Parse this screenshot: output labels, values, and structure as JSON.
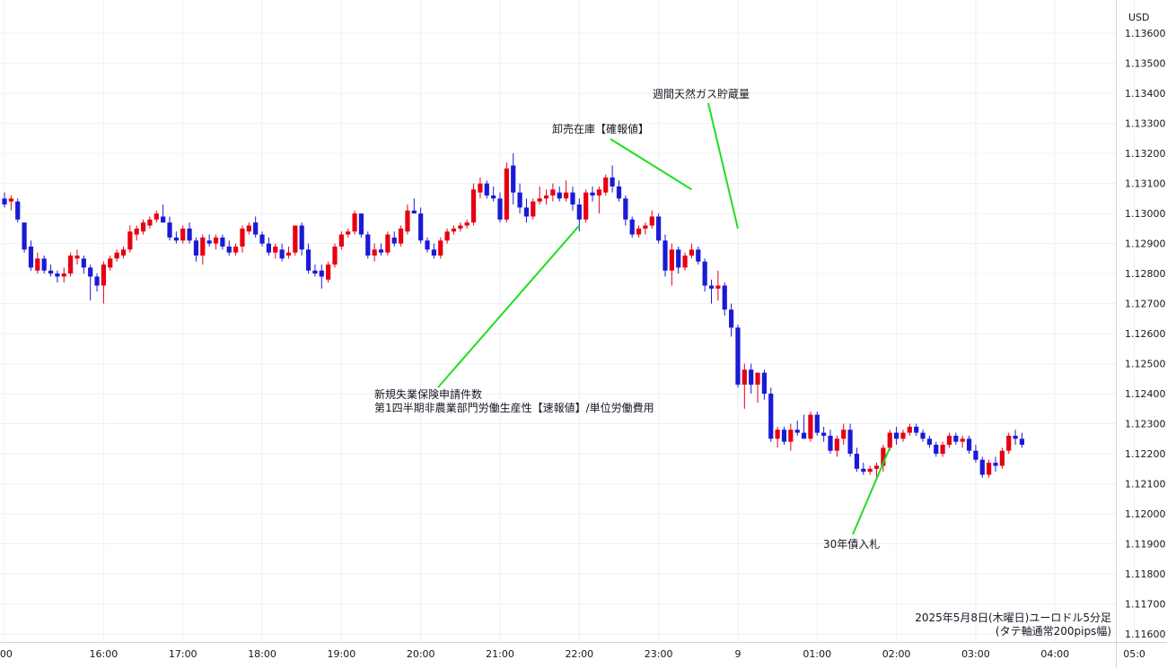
{
  "currency_label": "USD",
  "chart_title_line1": "2025年5月8日(木曜日)ユーロドル5分足",
  "chart_title_line2": "(タテ軸通常200pips幅)",
  "chart_data": {
    "type": "candlestick",
    "title": "2025年5月8日(木曜日)ユーロドル5分足",
    "subtitle": "(タテ軸通常200pips幅)",
    "y_axis_label": "USD",
    "ylim": [
      1.116,
      1.137
    ],
    "y_ticks": [
      "1.13600",
      "1.13500",
      "1.13400",
      "1.13300",
      "1.13200",
      "1.13100",
      "1.13000",
      "1.12900",
      "1.12800",
      "1.12700",
      "1.12600",
      "1.12500",
      "1.12400",
      "1.12300",
      "1.12200",
      "1.12100",
      "1.12000",
      "1.11900",
      "1.11800",
      "1.11700",
      "1.11600"
    ],
    "x_ticks": [
      ":00",
      "16:00",
      "17:00",
      "18:00",
      "19:00",
      "20:00",
      "21:00",
      "22:00",
      "23:00",
      "9",
      "01:00",
      "02:00",
      "03:00",
      "04:00",
      "05:0"
    ],
    "x_tick_index": [
      0,
      15,
      27,
      39,
      51,
      63,
      75,
      87,
      99,
      111,
      123,
      135,
      147,
      159,
      171
    ],
    "grid": true,
    "up_color": "#e60012",
    "down_color": "#1a1ad6",
    "candles": [
      {
        "o": 1.1305,
        "h": 1.1307,
        "l": 1.1302,
        "c": 1.1303
      },
      {
        "o": 1.1304,
        "h": 1.1306,
        "l": 1.1301,
        "c": 1.1305
      },
      {
        "o": 1.1304,
        "h": 1.1305,
        "l": 1.1297,
        "c": 1.1298
      },
      {
        "o": 1.1297,
        "h": 1.1297,
        "l": 1.1287,
        "c": 1.1288
      },
      {
        "o": 1.1289,
        "h": 1.1291,
        "l": 1.1281,
        "c": 1.1282
      },
      {
        "o": 1.1281,
        "h": 1.1287,
        "l": 1.128,
        "c": 1.1285
      },
      {
        "o": 1.1285,
        "h": 1.1286,
        "l": 1.128,
        "c": 1.1281
      },
      {
        "o": 1.1281,
        "h": 1.1283,
        "l": 1.1279,
        "c": 1.128
      },
      {
        "o": 1.128,
        "h": 1.1281,
        "l": 1.1277,
        "c": 1.1279
      },
      {
        "o": 1.1279,
        "h": 1.1282,
        "l": 1.1277,
        "c": 1.128
      },
      {
        "o": 1.128,
        "h": 1.1287,
        "l": 1.1279,
        "c": 1.1286
      },
      {
        "o": 1.1285,
        "h": 1.1288,
        "l": 1.1283,
        "c": 1.1286
      },
      {
        "o": 1.1285,
        "h": 1.1286,
        "l": 1.128,
        "c": 1.1282
      },
      {
        "o": 1.1282,
        "h": 1.1283,
        "l": 1.1271,
        "c": 1.1279
      },
      {
        "o": 1.1279,
        "h": 1.128,
        "l": 1.1274,
        "c": 1.1276
      },
      {
        "o": 1.1276,
        "h": 1.1284,
        "l": 1.127,
        "c": 1.1283
      },
      {
        "o": 1.1282,
        "h": 1.1286,
        "l": 1.1281,
        "c": 1.1285
      },
      {
        "o": 1.1285,
        "h": 1.1288,
        "l": 1.1284,
        "c": 1.1287
      },
      {
        "o": 1.1286,
        "h": 1.1289,
        "l": 1.1285,
        "c": 1.1288
      },
      {
        "o": 1.1288,
        "h": 1.1296,
        "l": 1.1287,
        "c": 1.1294
      },
      {
        "o": 1.1293,
        "h": 1.1296,
        "l": 1.1291,
        "c": 1.1295
      },
      {
        "o": 1.1294,
        "h": 1.1298,
        "l": 1.1293,
        "c": 1.1297
      },
      {
        "o": 1.1296,
        "h": 1.1299,
        "l": 1.1295,
        "c": 1.1298
      },
      {
        "o": 1.1298,
        "h": 1.1301,
        "l": 1.1297,
        "c": 1.13
      },
      {
        "o": 1.1299,
        "h": 1.1303,
        "l": 1.1297,
        "c": 1.1297
      },
      {
        "o": 1.1297,
        "h": 1.1299,
        "l": 1.1291,
        "c": 1.1292
      },
      {
        "o": 1.1292,
        "h": 1.1294,
        "l": 1.129,
        "c": 1.1291
      },
      {
        "o": 1.1291,
        "h": 1.1296,
        "l": 1.129,
        "c": 1.1295
      },
      {
        "o": 1.1295,
        "h": 1.1297,
        "l": 1.129,
        "c": 1.1291
      },
      {
        "o": 1.1291,
        "h": 1.1292,
        "l": 1.1284,
        "c": 1.1286
      },
      {
        "o": 1.1286,
        "h": 1.1293,
        "l": 1.1283,
        "c": 1.1292
      },
      {
        "o": 1.1291,
        "h": 1.1293,
        "l": 1.1289,
        "c": 1.129
      },
      {
        "o": 1.129,
        "h": 1.1293,
        "l": 1.1288,
        "c": 1.1292
      },
      {
        "o": 1.1292,
        "h": 1.1293,
        "l": 1.1288,
        "c": 1.1289
      },
      {
        "o": 1.1289,
        "h": 1.1291,
        "l": 1.1286,
        "c": 1.1287
      },
      {
        "o": 1.1287,
        "h": 1.129,
        "l": 1.1286,
        "c": 1.1289
      },
      {
        "o": 1.1289,
        "h": 1.1296,
        "l": 1.1287,
        "c": 1.1295
      },
      {
        "o": 1.1294,
        "h": 1.1297,
        "l": 1.1293,
        "c": 1.1296
      },
      {
        "o": 1.1297,
        "h": 1.1299,
        "l": 1.1292,
        "c": 1.1293
      },
      {
        "o": 1.1293,
        "h": 1.1294,
        "l": 1.1289,
        "c": 1.129
      },
      {
        "o": 1.129,
        "h": 1.1292,
        "l": 1.1286,
        "c": 1.1287
      },
      {
        "o": 1.1287,
        "h": 1.129,
        "l": 1.1285,
        "c": 1.1289
      },
      {
        "o": 1.1288,
        "h": 1.129,
        "l": 1.1284,
        "c": 1.1285
      },
      {
        "o": 1.1286,
        "h": 1.1289,
        "l": 1.1285,
        "c": 1.1287
      },
      {
        "o": 1.1287,
        "h": 1.1296,
        "l": 1.1286,
        "c": 1.1296
      },
      {
        "o": 1.1296,
        "h": 1.1297,
        "l": 1.1286,
        "c": 1.1288
      },
      {
        "o": 1.1288,
        "h": 1.129,
        "l": 1.128,
        "c": 1.1281
      },
      {
        "o": 1.1281,
        "h": 1.1283,
        "l": 1.1279,
        "c": 1.128
      },
      {
        "o": 1.1281,
        "h": 1.1283,
        "l": 1.1275,
        "c": 1.1279
      },
      {
        "o": 1.1278,
        "h": 1.1284,
        "l": 1.1277,
        "c": 1.1283
      },
      {
        "o": 1.1283,
        "h": 1.129,
        "l": 1.1282,
        "c": 1.1289
      },
      {
        "o": 1.1289,
        "h": 1.1294,
        "l": 1.1288,
        "c": 1.1293
      },
      {
        "o": 1.1293,
        "h": 1.1295,
        "l": 1.1292,
        "c": 1.1294
      },
      {
        "o": 1.1294,
        "h": 1.1301,
        "l": 1.1293,
        "c": 1.13
      },
      {
        "o": 1.13,
        "h": 1.13,
        "l": 1.1292,
        "c": 1.1293
      },
      {
        "o": 1.1293,
        "h": 1.1294,
        "l": 1.1285,
        "c": 1.1286
      },
      {
        "o": 1.1286,
        "h": 1.129,
        "l": 1.1284,
        "c": 1.1288
      },
      {
        "o": 1.1288,
        "h": 1.129,
        "l": 1.1286,
        "c": 1.1287
      },
      {
        "o": 1.1287,
        "h": 1.1294,
        "l": 1.1286,
        "c": 1.1293
      },
      {
        "o": 1.1292,
        "h": 1.1294,
        "l": 1.1289,
        "c": 1.129
      },
      {
        "o": 1.129,
        "h": 1.1296,
        "l": 1.1289,
        "c": 1.1295
      },
      {
        "o": 1.1294,
        "h": 1.1303,
        "l": 1.1293,
        "c": 1.1301
      },
      {
        "o": 1.1301,
        "h": 1.1305,
        "l": 1.13,
        "c": 1.13
      },
      {
        "o": 1.13,
        "h": 1.1302,
        "l": 1.129,
        "c": 1.1291
      },
      {
        "o": 1.1291,
        "h": 1.1292,
        "l": 1.1287,
        "c": 1.1288
      },
      {
        "o": 1.1288,
        "h": 1.129,
        "l": 1.1285,
        "c": 1.1286
      },
      {
        "o": 1.1286,
        "h": 1.1292,
        "l": 1.1285,
        "c": 1.1291
      },
      {
        "o": 1.1291,
        "h": 1.1295,
        "l": 1.129,
        "c": 1.1294
      },
      {
        "o": 1.1294,
        "h": 1.1296,
        "l": 1.1293,
        "c": 1.1295
      },
      {
        "o": 1.1295,
        "h": 1.1297,
        "l": 1.1294,
        "c": 1.1296
      },
      {
        "o": 1.1296,
        "h": 1.1298,
        "l": 1.1295,
        "c": 1.1297
      },
      {
        "o": 1.1297,
        "h": 1.131,
        "l": 1.1296,
        "c": 1.1308
      },
      {
        "o": 1.1307,
        "h": 1.1312,
        "l": 1.1305,
        "c": 1.131
      },
      {
        "o": 1.131,
        "h": 1.1311,
        "l": 1.1305,
        "c": 1.1306
      },
      {
        "o": 1.1306,
        "h": 1.1309,
        "l": 1.1304,
        "c": 1.1305
      },
      {
        "o": 1.1305,
        "h": 1.1307,
        "l": 1.1297,
        "c": 1.1298
      },
      {
        "o": 1.1298,
        "h": 1.1317,
        "l": 1.1297,
        "c": 1.1315
      },
      {
        "o": 1.1316,
        "h": 1.132,
        "l": 1.1303,
        "c": 1.1307
      },
      {
        "o": 1.1307,
        "h": 1.131,
        "l": 1.13,
        "c": 1.1302
      },
      {
        "o": 1.1302,
        "h": 1.1305,
        "l": 1.1297,
        "c": 1.1299
      },
      {
        "o": 1.1299,
        "h": 1.1305,
        "l": 1.1298,
        "c": 1.1304
      },
      {
        "o": 1.1304,
        "h": 1.1309,
        "l": 1.1303,
        "c": 1.1305
      },
      {
        "o": 1.1305,
        "h": 1.1308,
        "l": 1.1303,
        "c": 1.1306
      },
      {
        "o": 1.1306,
        "h": 1.131,
        "l": 1.1304,
        "c": 1.1308
      },
      {
        "o": 1.1307,
        "h": 1.1309,
        "l": 1.1304,
        "c": 1.1305
      },
      {
        "o": 1.1305,
        "h": 1.1311,
        "l": 1.1304,
        "c": 1.1307
      },
      {
        "o": 1.1307,
        "h": 1.1309,
        "l": 1.1301,
        "c": 1.1303
      },
      {
        "o": 1.1303,
        "h": 1.1305,
        "l": 1.1294,
        "c": 1.1298
      },
      {
        "o": 1.1298,
        "h": 1.1308,
        "l": 1.1297,
        "c": 1.1307
      },
      {
        "o": 1.1307,
        "h": 1.1309,
        "l": 1.1304,
        "c": 1.1306
      },
      {
        "o": 1.1306,
        "h": 1.1309,
        "l": 1.13,
        "c": 1.1308
      },
      {
        "o": 1.1307,
        "h": 1.1313,
        "l": 1.1306,
        "c": 1.1312
      },
      {
        "o": 1.1312,
        "h": 1.1316,
        "l": 1.1307,
        "c": 1.1309
      },
      {
        "o": 1.1309,
        "h": 1.1311,
        "l": 1.1304,
        "c": 1.1305
      },
      {
        "o": 1.1305,
        "h": 1.1306,
        "l": 1.1296,
        "c": 1.1298
      },
      {
        "o": 1.1298,
        "h": 1.1299,
        "l": 1.1292,
        "c": 1.1293
      },
      {
        "o": 1.1293,
        "h": 1.1296,
        "l": 1.1292,
        "c": 1.1295
      },
      {
        "o": 1.1295,
        "h": 1.1297,
        "l": 1.1293,
        "c": 1.1296
      },
      {
        "o": 1.1296,
        "h": 1.1301,
        "l": 1.1295,
        "c": 1.1299
      },
      {
        "o": 1.1299,
        "h": 1.13,
        "l": 1.129,
        "c": 1.1291
      },
      {
        "o": 1.1291,
        "h": 1.1293,
        "l": 1.1279,
        "c": 1.1281
      },
      {
        "o": 1.1281,
        "h": 1.129,
        "l": 1.1276,
        "c": 1.1288
      },
      {
        "o": 1.1288,
        "h": 1.1289,
        "l": 1.128,
        "c": 1.1282
      },
      {
        "o": 1.1282,
        "h": 1.1287,
        "l": 1.1281,
        "c": 1.1286
      },
      {
        "o": 1.1286,
        "h": 1.129,
        "l": 1.1285,
        "c": 1.1288
      },
      {
        "o": 1.1288,
        "h": 1.1289,
        "l": 1.1283,
        "c": 1.1284
      },
      {
        "o": 1.1284,
        "h": 1.1285,
        "l": 1.1274,
        "c": 1.1276
      },
      {
        "o": 1.1276,
        "h": 1.1278,
        "l": 1.127,
        "c": 1.1275
      },
      {
        "o": 1.1275,
        "h": 1.1281,
        "l": 1.1271,
        "c": 1.1276
      },
      {
        "o": 1.1276,
        "h": 1.1277,
        "l": 1.1266,
        "c": 1.1268
      },
      {
        "o": 1.1268,
        "h": 1.127,
        "l": 1.1259,
        "c": 1.1262
      },
      {
        "o": 1.1262,
        "h": 1.1263,
        "l": 1.1242,
        "c": 1.1243
      },
      {
        "o": 1.1243,
        "h": 1.125,
        "l": 1.1235,
        "c": 1.1248
      },
      {
        "o": 1.1248,
        "h": 1.125,
        "l": 1.124,
        "c": 1.1243
      },
      {
        "o": 1.1243,
        "h": 1.1247,
        "l": 1.1237,
        "c": 1.1247
      },
      {
        "o": 1.1247,
        "h": 1.1248,
        "l": 1.1238,
        "c": 1.124
      },
      {
        "o": 1.124,
        "h": 1.1242,
        "l": 1.1224,
        "c": 1.1225
      },
      {
        "o": 1.1225,
        "h": 1.1229,
        "l": 1.1222,
        "c": 1.1228
      },
      {
        "o": 1.1228,
        "h": 1.1229,
        "l": 1.1223,
        "c": 1.1224
      },
      {
        "o": 1.1224,
        "h": 1.123,
        "l": 1.1221,
        "c": 1.1228
      },
      {
        "o": 1.1228,
        "h": 1.1231,
        "l": 1.1226,
        "c": 1.1227
      },
      {
        "o": 1.1227,
        "h": 1.1233,
        "l": 1.1226,
        "c": 1.1225
      },
      {
        "o": 1.1225,
        "h": 1.1234,
        "l": 1.1224,
        "c": 1.1233
      },
      {
        "o": 1.1233,
        "h": 1.1234,
        "l": 1.1226,
        "c": 1.1227
      },
      {
        "o": 1.1227,
        "h": 1.1229,
        "l": 1.1224,
        "c": 1.1226
      },
      {
        "o": 1.1226,
        "h": 1.1228,
        "l": 1.122,
        "c": 1.1221
      },
      {
        "o": 1.1221,
        "h": 1.1226,
        "l": 1.1219,
        "c": 1.1225
      },
      {
        "o": 1.1225,
        "h": 1.123,
        "l": 1.1223,
        "c": 1.1228
      },
      {
        "o": 1.1228,
        "h": 1.123,
        "l": 1.1219,
        "c": 1.122
      },
      {
        "o": 1.122,
        "h": 1.1222,
        "l": 1.1214,
        "c": 1.1215
      },
      {
        "o": 1.1215,
        "h": 1.1217,
        "l": 1.1213,
        "c": 1.1214
      },
      {
        "o": 1.1214,
        "h": 1.1216,
        "l": 1.1213,
        "c": 1.1215
      },
      {
        "o": 1.1215,
        "h": 1.1217,
        "l": 1.1212,
        "c": 1.1216
      },
      {
        "o": 1.1216,
        "h": 1.1223,
        "l": 1.1214,
        "c": 1.1222
      },
      {
        "o": 1.1222,
        "h": 1.1228,
        "l": 1.1221,
        "c": 1.1227
      },
      {
        "o": 1.1227,
        "h": 1.1229,
        "l": 1.1223,
        "c": 1.1225
      },
      {
        "o": 1.1225,
        "h": 1.1228,
        "l": 1.1224,
        "c": 1.1227
      },
      {
        "o": 1.1227,
        "h": 1.123,
        "l": 1.1226,
        "c": 1.1229
      },
      {
        "o": 1.1229,
        "h": 1.123,
        "l": 1.1226,
        "c": 1.1227
      },
      {
        "o": 1.1227,
        "h": 1.1228,
        "l": 1.1224,
        "c": 1.1225
      },
      {
        "o": 1.1225,
        "h": 1.1226,
        "l": 1.1222,
        "c": 1.1223
      },
      {
        "o": 1.1223,
        "h": 1.1224,
        "l": 1.1219,
        "c": 1.122
      },
      {
        "o": 1.122,
        "h": 1.1224,
        "l": 1.1219,
        "c": 1.1223
      },
      {
        "o": 1.1223,
        "h": 1.1227,
        "l": 1.1222,
        "c": 1.1226
      },
      {
        "o": 1.1226,
        "h": 1.1227,
        "l": 1.1223,
        "c": 1.1224
      },
      {
        "o": 1.1224,
        "h": 1.1226,
        "l": 1.1222,
        "c": 1.1225
      },
      {
        "o": 1.1225,
        "h": 1.1226,
        "l": 1.122,
        "c": 1.1221
      },
      {
        "o": 1.1221,
        "h": 1.1223,
        "l": 1.1217,
        "c": 1.1218
      },
      {
        "o": 1.1218,
        "h": 1.1219,
        "l": 1.1212,
        "c": 1.1213
      },
      {
        "o": 1.1213,
        "h": 1.1218,
        "l": 1.1212,
        "c": 1.1217
      },
      {
        "o": 1.1217,
        "h": 1.1219,
        "l": 1.1214,
        "c": 1.1216
      },
      {
        "o": 1.1216,
        "h": 1.1222,
        "l": 1.1215,
        "c": 1.1221
      },
      {
        "o": 1.1221,
        "h": 1.1227,
        "l": 1.122,
        "c": 1.1226
      },
      {
        "o": 1.1226,
        "h": 1.1228,
        "l": 1.1223,
        "c": 1.1225
      },
      {
        "o": 1.1225,
        "h": 1.1227,
        "l": 1.1222,
        "c": 1.1223
      }
    ],
    "annotations": [
      {
        "text": "週間天然ガス貯蔵量",
        "candle": 111,
        "price": 1.1295
      },
      {
        "text": "卸売在庫【確報値】",
        "candle": 104,
        "price": 1.1308
      },
      {
        "text": "新規失業保険申請件数",
        "candle": 87,
        "price": 1.1296
      },
      {
        "text": "第1四半期非農業部門労働生産性【速報値】/単位労働費用",
        "candle": 87,
        "price": 1.1296
      },
      {
        "text": "30年債入札",
        "candle": 134,
        "price": 1.1222
      }
    ]
  }
}
